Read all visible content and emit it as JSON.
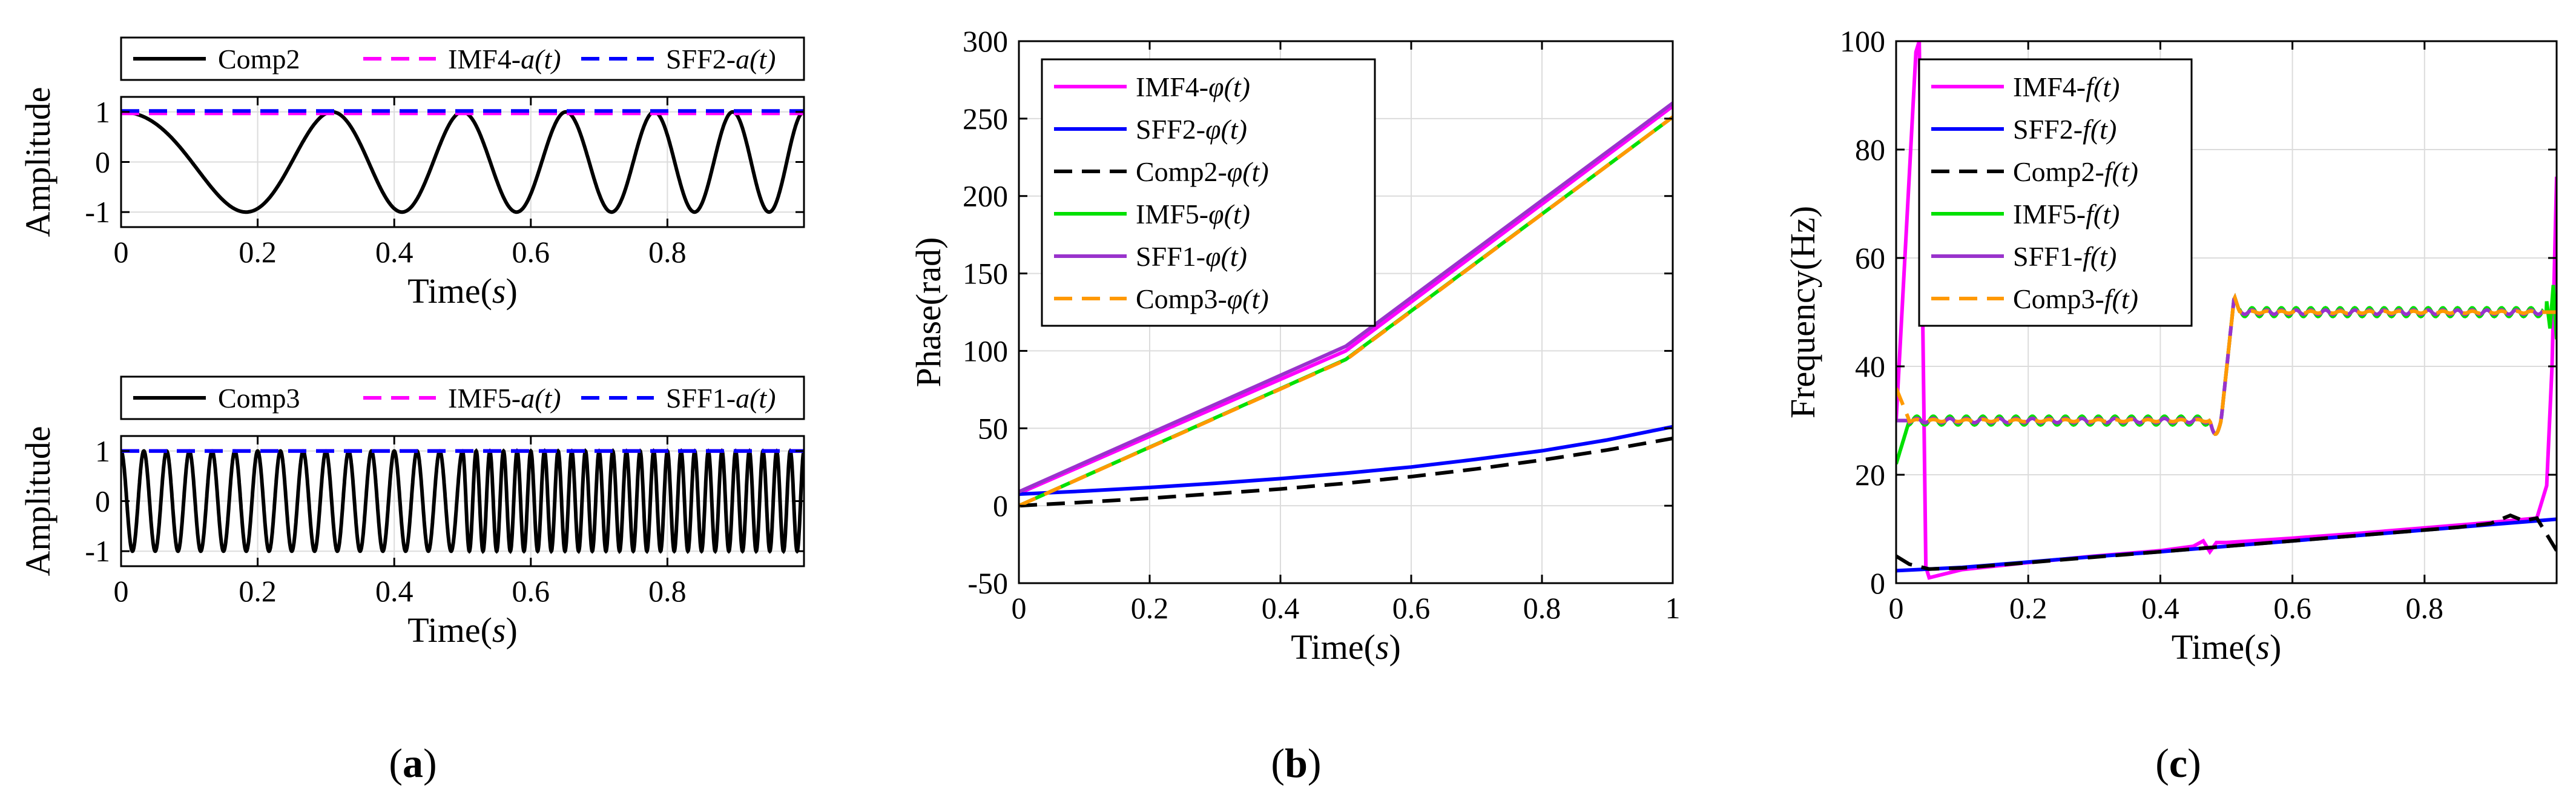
{
  "chart_data": [
    {
      "id": "a-top",
      "type": "line",
      "title": "",
      "xlabel_pre": "Time(",
      "xlabel_var": "s",
      "xlabel_post": ")",
      "ylabel": "Amplitude",
      "xlim": [
        0,
        1
      ],
      "ylim": [
        -1.3,
        1.3
      ],
      "xticks": [
        0,
        0.2,
        0.4,
        0.6,
        0.8
      ],
      "xtick_labels": [
        "0",
        "0.2",
        "0.4",
        "0.6",
        "0.8"
      ],
      "yticks": [
        -1,
        0,
        1
      ],
      "ytick_labels": [
        "-1",
        "0",
        "1"
      ],
      "grid": true,
      "legend_position": "top (outside, horizontal)",
      "series": [
        {
          "name_main": "Comp2",
          "name_var": "",
          "color": "#000000",
          "dash": "solid",
          "kind": "fm_sine",
          "f0": 2.0,
          "f1": 10.0,
          "phase_offset": 1.5708
        },
        {
          "name_main": "IMF4-",
          "name_var": "a(t)",
          "color": "#ff00ff",
          "dash": "dashed",
          "kind": "const",
          "value": 0.97
        },
        {
          "name_main": "SFF2-",
          "name_var": "a(t)",
          "color": "#0000ff",
          "dash": "dashed",
          "kind": "const",
          "value": 1.02
        }
      ]
    },
    {
      "id": "a-bottom",
      "type": "line",
      "title": "",
      "xlabel_pre": "Time(",
      "xlabel_var": "s",
      "xlabel_post": ")",
      "ylabel": "Amplitude",
      "xlim": [
        0,
        1
      ],
      "ylim": [
        -1.3,
        1.3
      ],
      "xticks": [
        0,
        0.2,
        0.4,
        0.6,
        0.8
      ],
      "xtick_labels": [
        "0",
        "0.2",
        "0.4",
        "0.6",
        "0.8"
      ],
      "yticks": [
        -1,
        0,
        1
      ],
      "ytick_labels": [
        "-1",
        "0",
        "1"
      ],
      "grid": true,
      "legend_position": "top (outside, horizontal)",
      "series": [
        {
          "name_main": "Comp3",
          "name_var": "",
          "color": "#000000",
          "dash": "solid",
          "kind": "step_sine",
          "fa": 30,
          "fb": 50,
          "t_switch": 0.5
        },
        {
          "name_main": "IMF5-",
          "name_var": "a(t)",
          "color": "#ff00ff",
          "dash": "dashed",
          "kind": "const",
          "value": 1.0
        },
        {
          "name_main": "SFF1-",
          "name_var": "a(t)",
          "color": "#0000ff",
          "dash": "dashed",
          "kind": "const",
          "value": 1.0
        }
      ]
    },
    {
      "id": "b",
      "type": "line",
      "title": "",
      "xlabel_pre": "Time(",
      "xlabel_var": "s",
      "xlabel_post": ")",
      "ylabel": "Phase(rad)",
      "xlim": [
        0,
        1
      ],
      "ylim": [
        -50,
        300
      ],
      "xticks": [
        0,
        0.2,
        0.4,
        0.6,
        0.8,
        1
      ],
      "xtick_labels": [
        "0",
        "0.2",
        "0.4",
        "0.6",
        "0.8",
        "1"
      ],
      "yticks": [
        -50,
        0,
        50,
        100,
        150,
        200,
        250,
        300
      ],
      "ytick_labels": [
        "-50",
        "0",
        "50",
        "100",
        "150",
        "200",
        "250",
        "300"
      ],
      "grid": true,
      "legend_position": "top-left (inside)",
      "series": [
        {
          "name_main": "IMF4-",
          "name_var": "φ(t)",
          "color": "#ff00ff",
          "dash": "solid",
          "x": [
            0,
            0.5,
            1
          ],
          "y": [
            8,
            100,
            258
          ]
        },
        {
          "name_main": "SFF2-",
          "name_var": "φ(t)",
          "color": "#0000ff",
          "dash": "solid",
          "x": [
            0,
            0.1,
            0.2,
            0.3,
            0.4,
            0.5,
            0.6,
            0.7,
            0.8,
            0.9,
            1
          ],
          "y": [
            7.5,
            9.5,
            11.8,
            14.5,
            17.5,
            21,
            25,
            30,
            35.5,
            42.5,
            51
          ]
        },
        {
          "name_main": "Comp2-",
          "name_var": "φ(t)",
          "color": "#000000",
          "dash": "dashed",
          "x": [
            0,
            0.1,
            0.2,
            0.3,
            0.4,
            0.5,
            0.6,
            0.7,
            0.8,
            0.9,
            1
          ],
          "y": [
            0,
            2.3,
            4.8,
            7.8,
            10.8,
            14.5,
            18.8,
            23.8,
            29.5,
            36,
            43.5
          ]
        },
        {
          "name_main": "IMF5-",
          "name_var": "φ(t)",
          "color": "#00e000",
          "dash": "solid",
          "x": [
            0,
            0.5,
            1
          ],
          "y": [
            0,
            94.5,
            251
          ]
        },
        {
          "name_main": "SFF1-",
          "name_var": "φ(t)",
          "color": "#9932cc",
          "dash": "solid",
          "x": [
            0,
            0.5,
            1
          ],
          "y": [
            9,
            103,
            260
          ]
        },
        {
          "name_main": "Comp3-",
          "name_var": "φ(t)",
          "color": "#ff9900",
          "dash": "dashed",
          "x": [
            0,
            0.5,
            1
          ],
          "y": [
            0,
            94.2,
            251
          ]
        }
      ]
    },
    {
      "id": "c",
      "type": "line",
      "title": "",
      "xlabel_pre": "Time(",
      "xlabel_var": "s",
      "xlabel_post": ")",
      "ylabel": "Frequency(Hz)",
      "xlim": [
        0,
        1
      ],
      "ylim": [
        0,
        100
      ],
      "xticks": [
        0,
        0.2,
        0.4,
        0.6,
        0.8
      ],
      "xtick_labels": [
        "0",
        "0.2",
        "0.4",
        "0.6",
        "0.8"
      ],
      "yticks": [
        0,
        20,
        40,
        60,
        80,
        100
      ],
      "ytick_labels": [
        "0",
        "20",
        "40",
        "60",
        "80",
        "100"
      ],
      "grid": true,
      "legend_position": "top-left (inside)",
      "series": [
        {
          "name_main": "IMF4-",
          "name_var": "f(t)",
          "color": "#ff00ff",
          "dash": "solid",
          "x": [
            0,
            0.03,
            0.035,
            0.045,
            0.05,
            0.1,
            0.2,
            0.3,
            0.4,
            0.45,
            0.465,
            0.475,
            0.485,
            0.5,
            0.6,
            0.7,
            0.8,
            0.9,
            0.97,
            0.985,
            0.993,
            1
          ],
          "y": [
            30,
            98,
            100,
            3,
            1,
            2.5,
            3.8,
            5,
            6,
            6.8,
            7.8,
            5.8,
            7.5,
            7.5,
            8.3,
            9.2,
            10.2,
            11.2,
            12,
            18,
            40,
            75
          ]
        },
        {
          "name_main": "SFF2-",
          "name_var": "f(t)",
          "color": "#0000ff",
          "dash": "solid",
          "x": [
            0,
            0.1,
            0.2,
            0.3,
            0.4,
            0.5,
            0.6,
            0.7,
            0.8,
            0.9,
            1
          ],
          "y": [
            2.3,
            2.9,
            3.9,
            4.9,
            5.8,
            6.8,
            7.8,
            8.8,
            9.8,
            10.8,
            11.8
          ]
        },
        {
          "name_main": "Comp2-",
          "name_var": "f(t)",
          "color": "#000000",
          "dash": "dashed",
          "x": [
            0,
            0.02,
            0.05,
            0.1,
            0.2,
            0.3,
            0.4,
            0.5,
            0.6,
            0.7,
            0.8,
            0.85,
            0.9,
            0.93,
            0.95,
            0.97,
            0.99,
            1
          ],
          "y": [
            5,
            3.5,
            2.6,
            2.8,
            3.8,
            4.8,
            5.8,
            6.8,
            7.8,
            8.8,
            9.8,
            10.3,
            11,
            12.5,
            11.5,
            12,
            8,
            6
          ]
        },
        {
          "name_main": "IMF5-",
          "name_var": "f(t)",
          "color": "#00e000",
          "dash": "solid",
          "kind": "step",
          "fa": 30,
          "fb": 50,
          "t_switch": 0.5,
          "ripple": 0.8,
          "start_dip": 22,
          "end_pairs": [
            0.985,
            52,
            0.99,
            47,
            0.995,
            55,
            1,
            45
          ]
        },
        {
          "name_main": "SFF1-",
          "name_var": "f(t)",
          "color": "#9932cc",
          "dash": "solid",
          "kind": "step",
          "fa": 30,
          "fb": 50,
          "t_switch": 0.5,
          "ripple": 0.4,
          "start_dip": 30,
          "end_pairs": [
            1,
            50
          ]
        },
        {
          "name_main": "Comp3-",
          "name_var": "f(t)",
          "color": "#ff9900",
          "dash": "dashed",
          "kind": "step",
          "fa": 30,
          "fb": 50,
          "t_switch": 0.5,
          "ripple": 0.2,
          "start_dip": 36,
          "end_pairs": [
            1,
            50
          ]
        }
      ]
    }
  ],
  "panel_labels": [
    "(a)",
    "(b)",
    "(c)"
  ]
}
